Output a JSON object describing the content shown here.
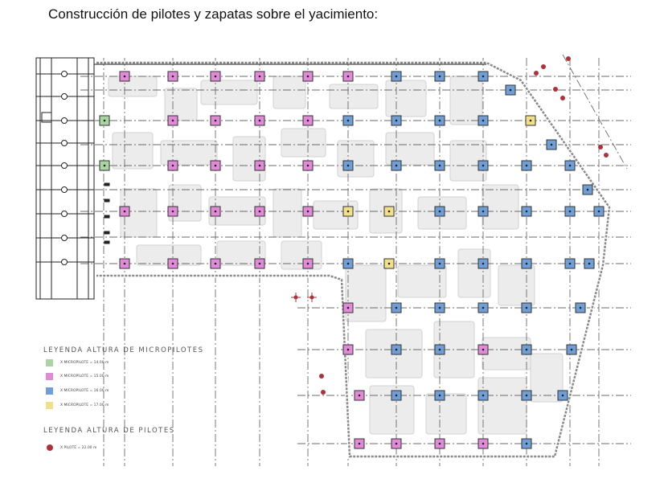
{
  "title": "Construcción de pilotes y zapatas sobre el yacimiento:",
  "legend": {
    "micropiles_title": "LEYENDA ALTURA DE MICROPILOTES",
    "micropiles": [
      {
        "label": "X MICROPILOTE = 14.00 m",
        "color": "#a8d5a2"
      },
      {
        "label": "X MICROPILOTE = 15.00 m",
        "color": "#e08ad8"
      },
      {
        "label": "X MICROPILOTE = 16.00 m",
        "color": "#6f9fd6"
      },
      {
        "label": "X MICROPILOTE = 17.00 m",
        "color": "#f1df8a"
      }
    ],
    "piles_title": "LEYENDA ALTURA DE PILOTES",
    "piles": [
      {
        "label": "X PILOTE = 22.00 m",
        "color": "#b0303a"
      }
    ]
  }
}
